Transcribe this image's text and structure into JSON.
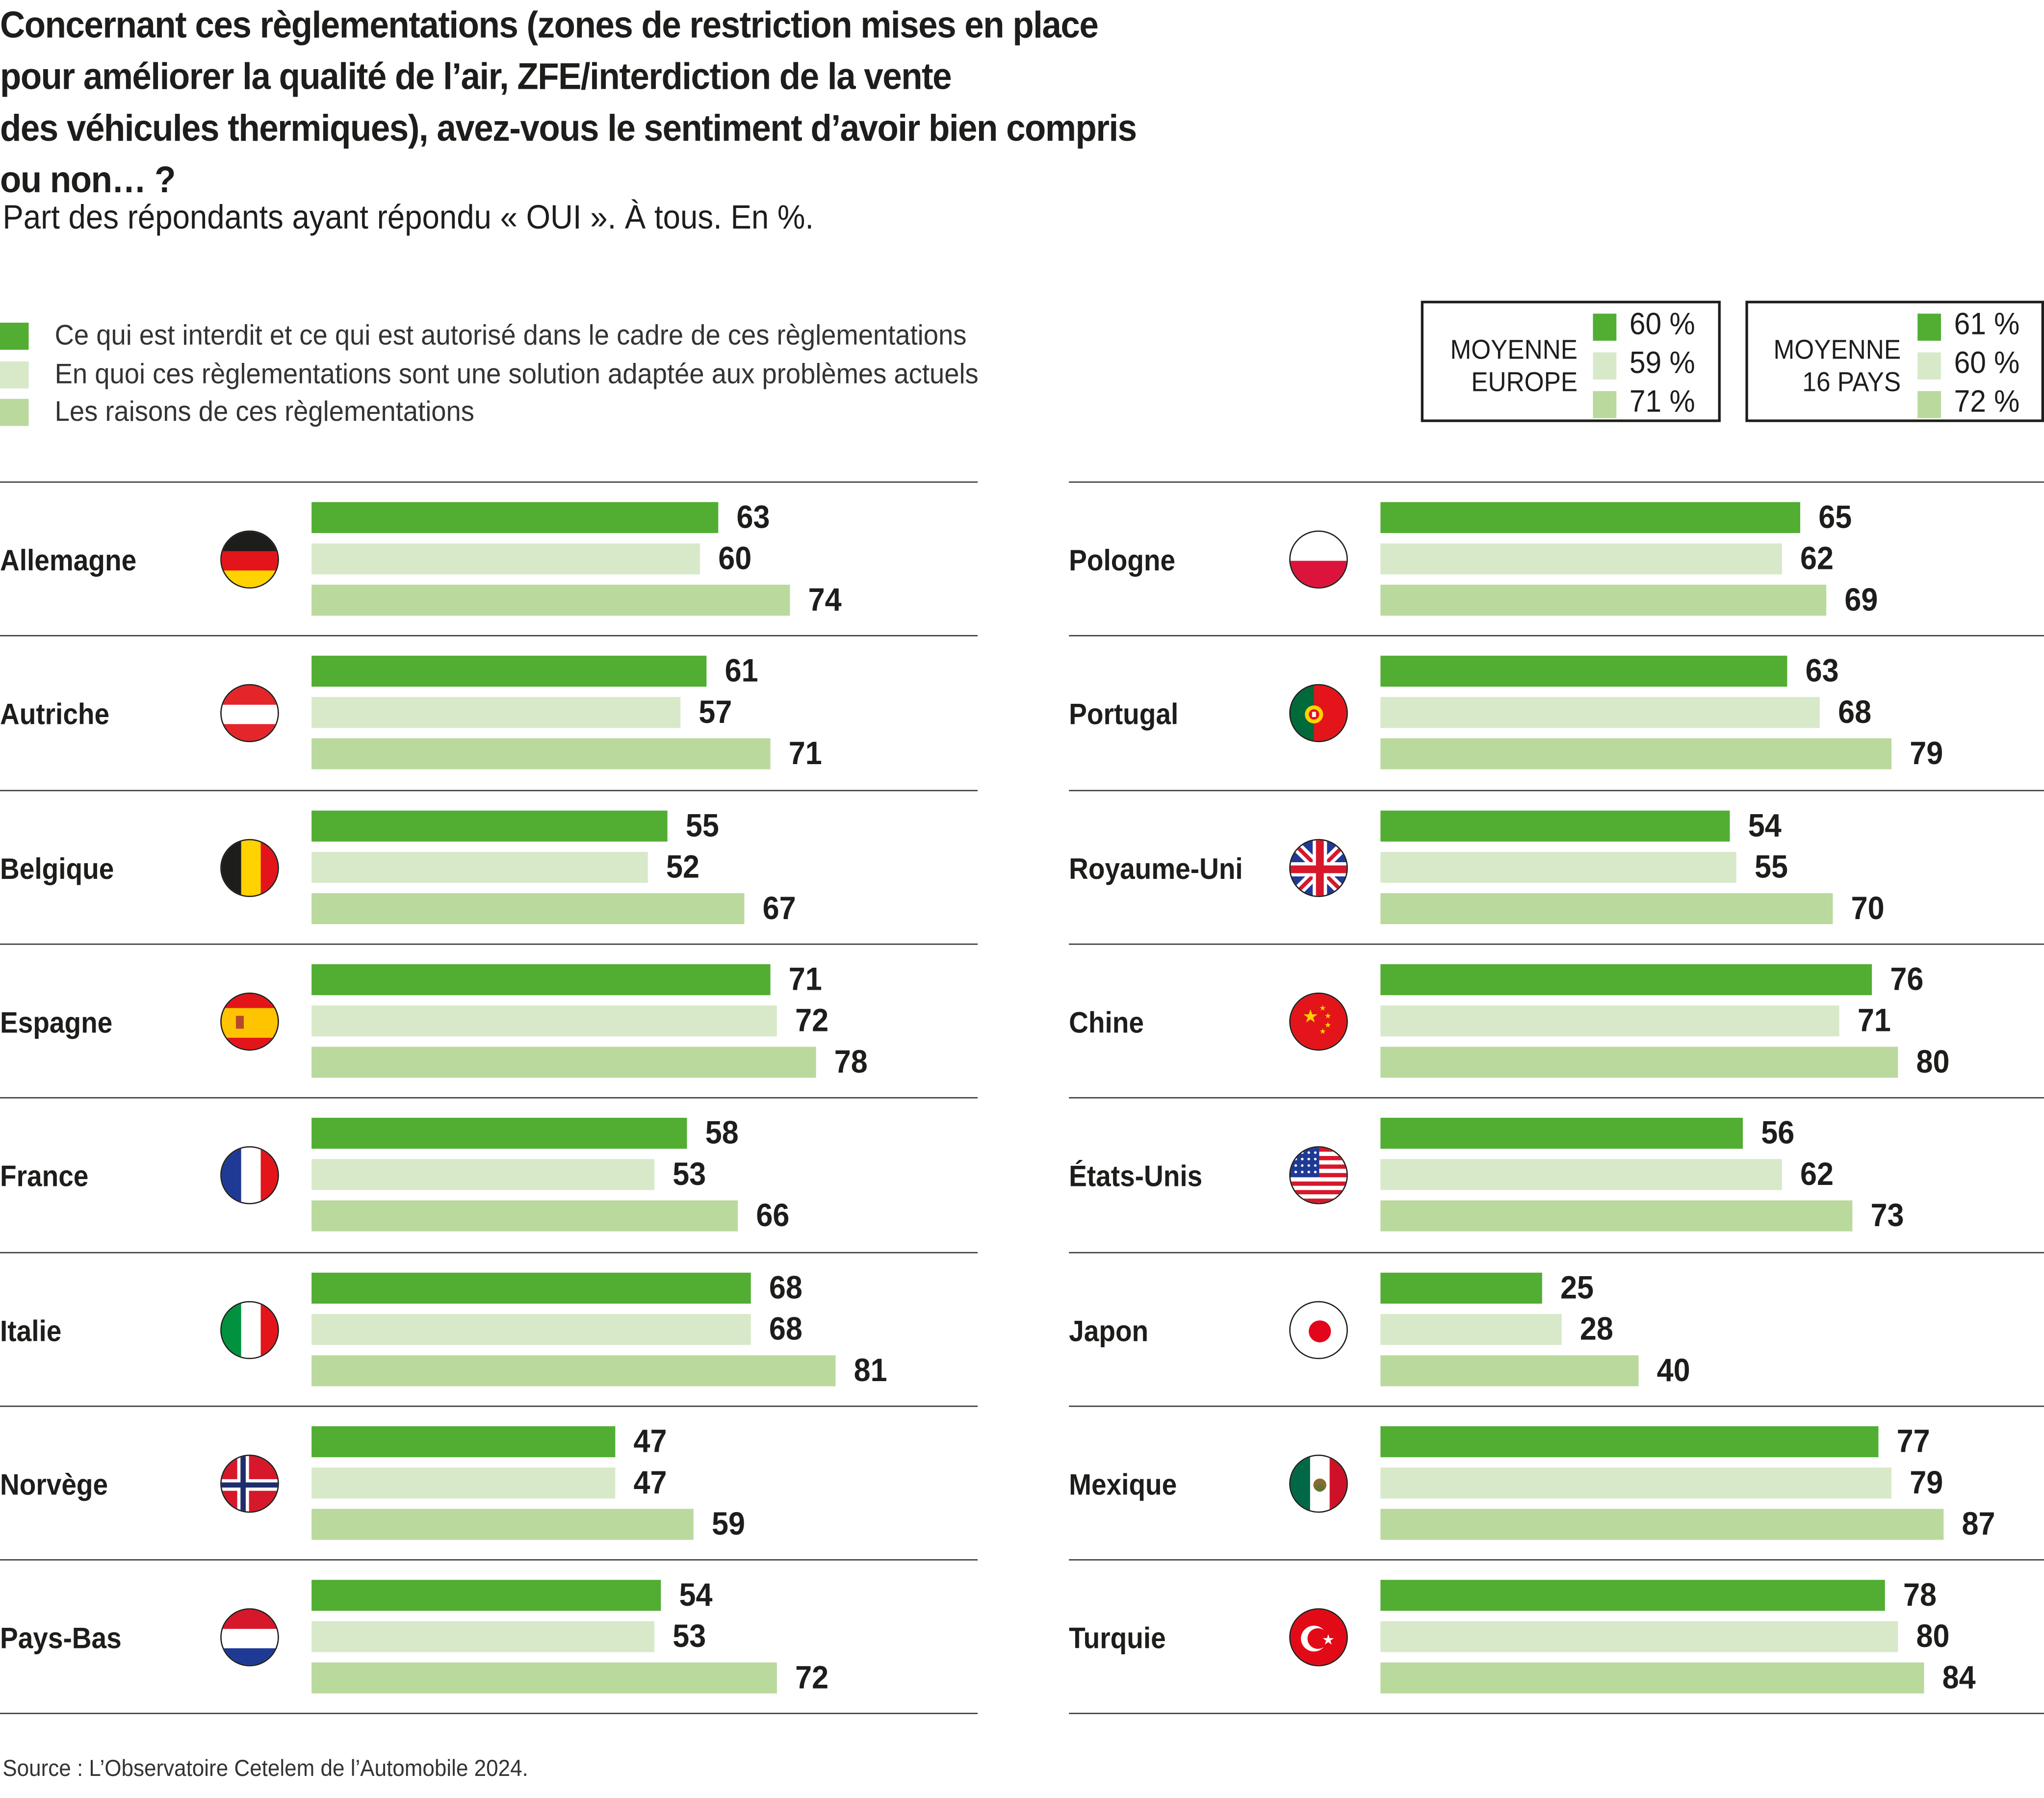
{
  "chart_data": {
    "type": "bar",
    "orientation": "horizontal-grouped",
    "title": "Concernant ces règlementations (zones de restriction mises en place\npour améliorer la qualité de l’air, ZFE/interdiction de la vente\ndes véhicules thermiques), avez-vous le sentiment d’avoir bien compris\nou non… ?",
    "subtitle": "Part des répondants ayant répondu « OUI ». À tous. En %.",
    "xlabel": "",
    "ylabel": "",
    "xlim": [
      0,
      100
    ],
    "grid": false,
    "legend_position": "top-left",
    "series": [
      {
        "name": "Ce qui est interdit et ce qui est autorisé dans le cadre de ces règlementations",
        "color": "#52ad33"
      },
      {
        "name": "En quoi ces règlementations sont une solution adaptée aux problèmes actuels",
        "color": "#d8e9c9"
      },
      {
        "name": "Les raisons de ces règlementations",
        "color": "#bad99d"
      }
    ],
    "panels": [
      {
        "countries": [
          {
            "name": "Allemagne",
            "flag": "germany-flag-icon",
            "values": [
              63,
              60,
              74
            ]
          },
          {
            "name": "Autriche",
            "flag": "austria-flag-icon",
            "values": [
              61,
              57,
              71
            ]
          },
          {
            "name": "Belgique",
            "flag": "belgium-flag-icon",
            "values": [
              55,
              52,
              67
            ]
          },
          {
            "name": "Espagne",
            "flag": "spain-flag-icon",
            "values": [
              71,
              72,
              78
            ]
          },
          {
            "name": "France",
            "flag": "france-flag-icon",
            "values": [
              58,
              53,
              66
            ]
          },
          {
            "name": "Italie",
            "flag": "italy-flag-icon",
            "values": [
              68,
              68,
              81
            ]
          },
          {
            "name": "Norvège",
            "flag": "norway-flag-icon",
            "values": [
              47,
              47,
              59
            ]
          },
          {
            "name": "Pays-Bas",
            "flag": "netherlands-flag-icon",
            "values": [
              54,
              53,
              72
            ]
          }
        ]
      },
      {
        "countries": [
          {
            "name": "Pologne",
            "flag": "poland-flag-icon",
            "values": [
              65,
              62,
              69
            ]
          },
          {
            "name": "Portugal",
            "flag": "portugal-flag-icon",
            "values": [
              63,
              68,
              79
            ]
          },
          {
            "name": "Royaume-Uni",
            "flag": "uk-flag-icon",
            "values": [
              54,
              55,
              70
            ]
          },
          {
            "name": "Chine",
            "flag": "china-flag-icon",
            "values": [
              76,
              71,
              80
            ]
          },
          {
            "name": "États-Unis",
            "flag": "usa-flag-icon",
            "values": [
              56,
              62,
              73
            ]
          },
          {
            "name": "Japon",
            "flag": "japan-flag-icon",
            "values": [
              25,
              28,
              40
            ]
          },
          {
            "name": "Mexique",
            "flag": "mexico-flag-icon",
            "values": [
              77,
              79,
              87
            ]
          },
          {
            "name": "Turquie",
            "flag": "turkey-flag-icon",
            "values": [
              78,
              80,
              84
            ]
          }
        ]
      }
    ],
    "averages": [
      {
        "label": "MOYENNE\nEUROPE",
        "values": [
          "60 %",
          "59 %",
          "71 %"
        ]
      },
      {
        "label": "MOYENNE\n16 PAYS",
        "values": [
          "61 %",
          "60 %",
          "72 %"
        ]
      }
    ],
    "source": "Source : L’Observatoire Cetelem de l’Automobile 2024."
  }
}
